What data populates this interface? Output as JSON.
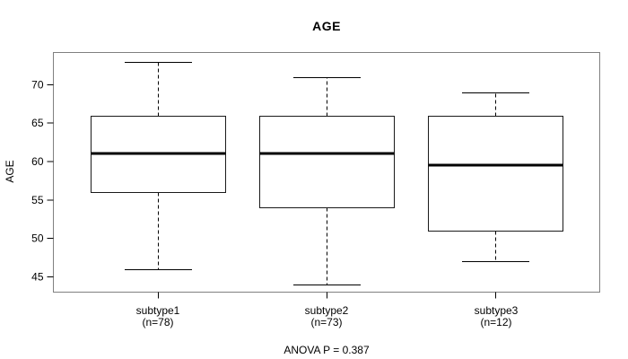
{
  "chart_data": {
    "type": "boxplot",
    "title": "AGE",
    "ylabel": "AGE",
    "xlabel": "",
    "categories": [
      "subtype1",
      "subtype2",
      "subtype3"
    ],
    "category_sublabels": [
      "(n=78)",
      "(n=73)",
      "(n=12)"
    ],
    "series": [
      {
        "name": "subtype1",
        "n": 78,
        "whisker_low": 46,
        "q1": 56,
        "median": 61,
        "q3": 66,
        "whisker_high": 73,
        "outliers": []
      },
      {
        "name": "subtype2",
        "n": 73,
        "whisker_low": 44,
        "q1": 54,
        "median": 61,
        "q3": 66,
        "whisker_high": 71,
        "outliers": []
      },
      {
        "name": "subtype3",
        "n": 12,
        "whisker_low": 47,
        "q1": 51,
        "median": 59.5,
        "q3": 66,
        "whisker_high": 69,
        "outliers": []
      }
    ],
    "yticks": [
      45,
      50,
      55,
      60,
      65,
      70
    ],
    "ylim": [
      43.0,
      74.2
    ],
    "annotation": "ANOVA P = 0.387",
    "grid": false,
    "legend": null,
    "colors": {
      "background": "#ffffff",
      "box_fill": "#ffffff",
      "box_border": "#1a1a1a",
      "median": "#000000",
      "whisker": "#000000",
      "frame": "#808080",
      "tick": "#000000",
      "text": "#000000"
    }
  }
}
